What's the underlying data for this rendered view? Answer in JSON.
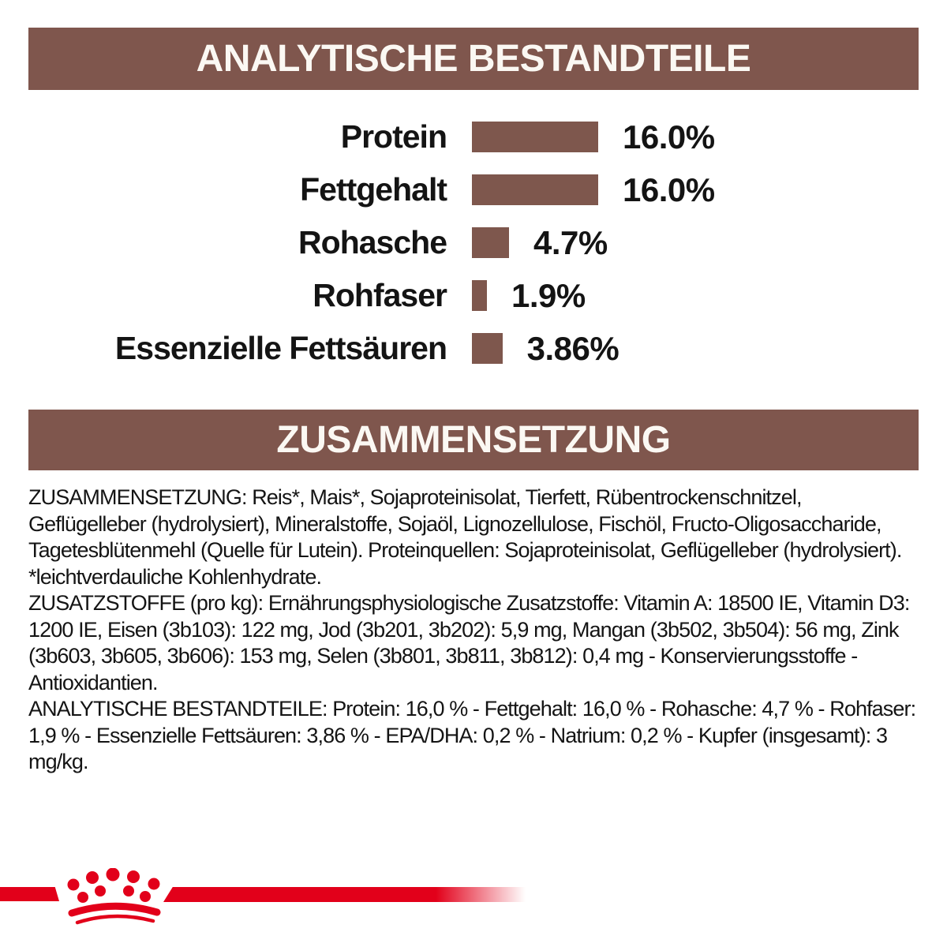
{
  "colors": {
    "banner_brown": "#7F564D",
    "bar_brown": "#7E574D",
    "text_black": "#141414",
    "brand_red": "#E2001A",
    "background": "#FFFFFF"
  },
  "sections": {
    "analytical_title": "ANALYTISCHE BESTANDTEILE",
    "composition_title": "ZUSAMMENSETZUNG"
  },
  "chart_data": {
    "type": "bar",
    "orientation": "horizontal",
    "title": "ANALYTISCHE BESTANDTEILE",
    "categories": [
      "Protein",
      "Fettgehalt",
      "Rohasche",
      "Rohfaser",
      "Essenzielle Fettsäuren"
    ],
    "values": [
      16.0,
      16.0,
      4.7,
      1.9,
      3.86
    ],
    "value_labels": [
      "16.0%",
      "16.0%",
      "4.7%",
      "1.9%",
      "3.86%"
    ],
    "unit": "%",
    "xlim": [
      0,
      16
    ],
    "grid": false,
    "legend": false,
    "bar_color": "#7E574D"
  },
  "body": {
    "paragraphs": [
      {
        "name": "zusammensetzung",
        "text": "ZUSAMMENSETZUNG: Reis*, Mais*, Sojaproteinisolat, Tierfett, Rübentrockenschnitzel, Geflügelleber (hydrolysiert), Mineralstoffe, Sojaöl, Lignozellulose, Fischöl, Fructo-Oligosaccharide, Tagetesblütenmehl (Quelle für Lutein). Proteinquellen: Sojaproteinisolat, Geflügelleber (hydrolysiert). *leichtverdauliche Kohlenhydrate."
      },
      {
        "name": "zusatzstoffe",
        "text": "ZUSATZSTOFFE (pro kg): Ernährungsphysiologische Zusatzstoffe: Vitamin A: 18500 IE, Vitamin D3: 1200 IE, Eisen (3b103): 122 mg, Jod (3b201, 3b202): 5,9 mg, Mangan (3b502, 3b504): 56 mg, Zink (3b603, 3b605, 3b606): 153 mg, Selen (3b801, 3b811, 3b812): 0,4 mg - Konservierungsstoffe - Antioxidantien."
      },
      {
        "name": "analytische_bestandteile",
        "text": "ANALYTISCHE BESTANDTEILE: Protein: 16,0 % - Fettgehalt: 16,0 % - Rohasche: 4,7 % - Rohfaser: 1,9 % - Essenzielle Fettsäuren: 3,86 % - EPA/DHA: 0,2 % - Natrium: 0,2 % - Kupfer (insgesamt): 3 mg/kg."
      }
    ]
  },
  "footer": {
    "brand_icon": "royal-canin-crown-icon"
  }
}
